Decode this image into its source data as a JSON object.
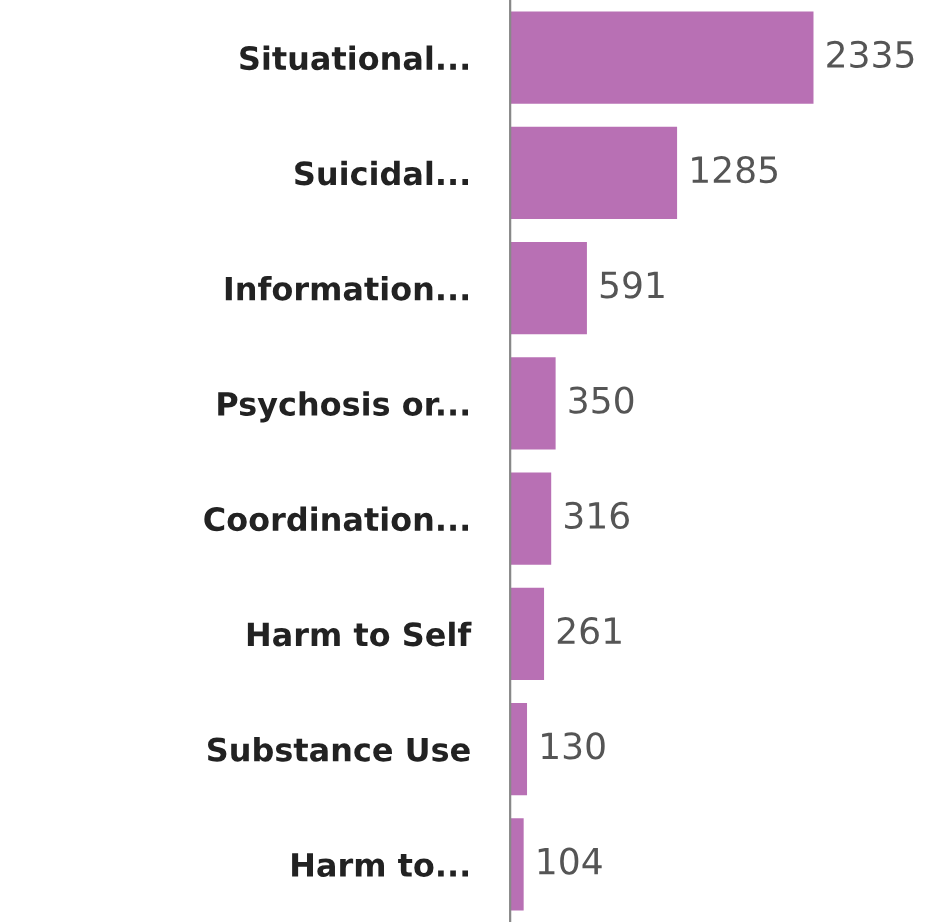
{
  "chart_data": {
    "type": "bar",
    "orientation": "horizontal",
    "categories": [
      "Situational...",
      "Suicidal...",
      "Information...",
      "Psychosis or...",
      "Coordination...",
      "Harm to Self",
      "Substance Use",
      "Harm to..."
    ],
    "values": [
      2335,
      1285,
      591,
      350,
      316,
      261,
      130,
      104
    ],
    "color": "#b870b4",
    "data_labels": true,
    "tick_labels": "y",
    "grid": false,
    "legend": false
  }
}
